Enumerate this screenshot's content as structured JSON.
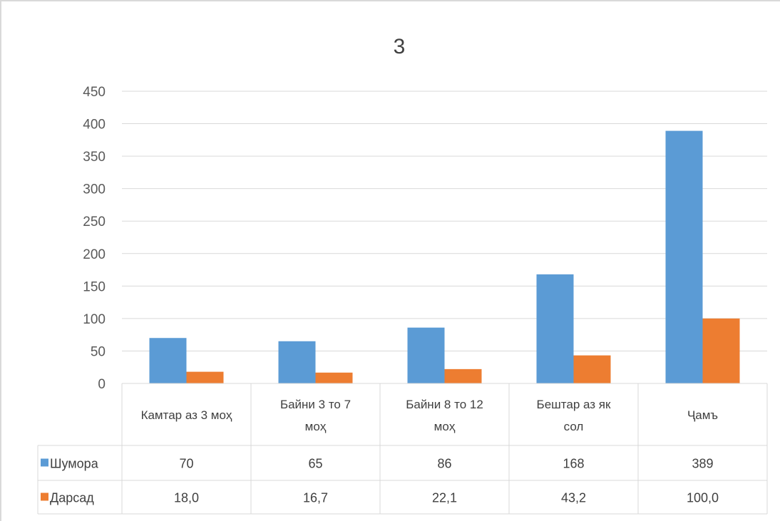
{
  "chart_data": {
    "type": "bar",
    "title": "3",
    "categories": [
      [
        "Камтар аз 3 моҳ"
      ],
      [
        "Байни 3 то 7",
        "моҳ"
      ],
      [
        "Байни 8 то 12",
        "моҳ"
      ],
      [
        "Бештар аз як",
        "сол"
      ],
      [
        "Ҷамъ"
      ]
    ],
    "series": [
      {
        "name": "Шумора",
        "color": "#5b9bd5",
        "values": [
          70,
          65,
          86,
          168,
          389
        ],
        "labels": [
          "70",
          "65",
          "86",
          "168",
          "389"
        ]
      },
      {
        "name": "Дарсад",
        "color": "#ed7d31",
        "values": [
          18.0,
          16.7,
          22.1,
          43.2,
          100.0
        ],
        "labels": [
          "18,0",
          "16,7",
          "22,1",
          "43,2",
          "100,0"
        ]
      }
    ],
    "yticks": [
      0,
      50,
      100,
      150,
      200,
      250,
      300,
      350,
      400,
      450
    ],
    "ylim": [
      0,
      450
    ],
    "grid": true,
    "legend": "data-table"
  }
}
